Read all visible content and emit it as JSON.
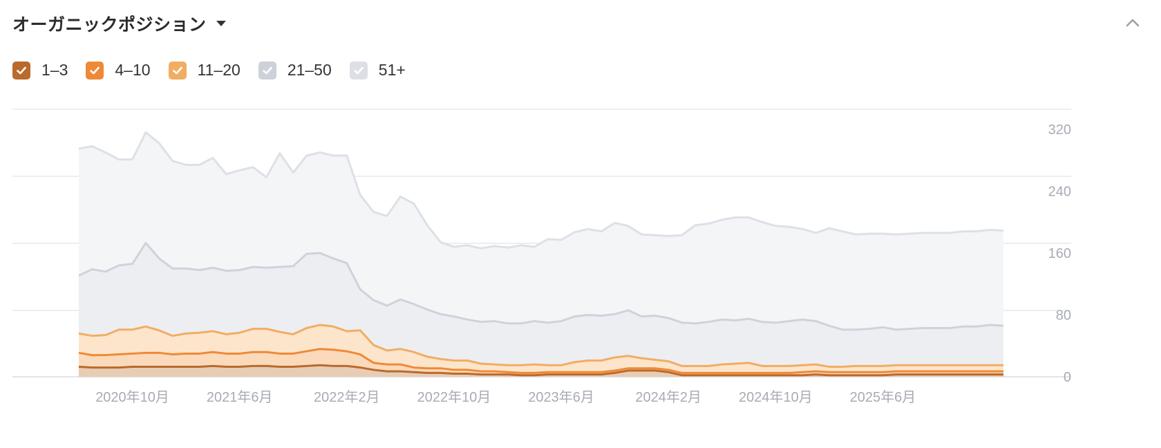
{
  "header": {
    "title": "オーガニックポジション"
  },
  "icons": {
    "dropdown": "caret-down-icon",
    "collapse": "chevron-up-icon",
    "check": "check-icon"
  },
  "legend": [
    {
      "label": "1–3",
      "color": "#b96a2c",
      "checked": true
    },
    {
      "label": "4–10",
      "color": "#ee8a36",
      "checked": true
    },
    {
      "label": "11–20",
      "color": "#f1ad63",
      "checked": true
    },
    {
      "label": "21–50",
      "color": "#cdd1d8",
      "checked": true
    },
    {
      "label": "51+",
      "color": "#dcdfe5",
      "checked": true
    }
  ],
  "chart_data": {
    "type": "area",
    "stacked": true,
    "x_tick_labels": [
      "2020年10月",
      "2021年6月",
      "2022年2月",
      "2022年10月",
      "2023年6月",
      "2024年2月",
      "2024年10月",
      "2025年6月"
    ],
    "x_tick_index": [
      4,
      12,
      20,
      28,
      36,
      44,
      52,
      60
    ],
    "y_ticks": [
      0,
      80,
      160,
      240,
      320
    ],
    "ylim": [
      0,
      320
    ],
    "grid": true,
    "series": [
      {
        "name": "1–3",
        "color": "#b96a2c",
        "values": [
          13,
          12,
          12,
          12,
          13,
          13,
          13,
          13,
          13,
          13,
          14,
          13,
          13,
          14,
          14,
          13,
          13,
          14,
          15,
          14,
          14,
          12,
          9,
          7,
          7,
          6,
          5,
          5,
          4,
          4,
          3,
          3,
          3,
          2,
          2,
          3,
          3,
          3,
          3,
          3,
          5,
          8,
          8,
          8,
          6,
          2,
          2,
          2,
          2,
          2,
          2,
          2,
          2,
          2,
          2,
          3,
          2,
          2,
          2,
          2,
          2,
          3,
          3,
          3,
          3,
          3,
          3,
          3,
          3,
          3
        ]
      },
      {
        "name": "4–10",
        "color": "#ee8a36",
        "values": [
          18,
          16,
          16,
          17,
          17,
          18,
          18,
          16,
          17,
          17,
          18,
          17,
          17,
          18,
          18,
          17,
          17,
          19,
          21,
          21,
          19,
          17,
          9,
          9,
          9,
          6,
          6,
          6,
          5,
          5,
          4,
          4,
          3,
          3,
          3,
          3,
          3,
          3,
          3,
          3,
          3,
          3,
          3,
          3,
          3,
          3,
          3,
          3,
          3,
          3,
          3,
          3,
          3,
          3,
          4,
          4,
          4,
          4,
          4,
          4,
          4,
          4,
          4,
          4,
          4,
          4,
          4,
          4,
          4,
          4
        ]
      },
      {
        "name": "11–20",
        "color": "#f1ad63",
        "values": [
          25,
          25,
          26,
          32,
          31,
          34,
          29,
          24,
          26,
          27,
          27,
          25,
          27,
          30,
          30,
          28,
          25,
          30,
          31,
          30,
          26,
          31,
          23,
          18,
          20,
          20,
          15,
          12,
          12,
          12,
          10,
          9,
          9,
          10,
          11,
          9,
          9,
          13,
          15,
          15,
          17,
          16,
          13,
          11,
          11,
          9,
          9,
          9,
          11,
          12,
          13,
          9,
          9,
          9,
          9,
          9,
          7,
          7,
          8,
          8,
          8,
          8,
          8,
          8,
          8,
          8,
          8,
          8,
          8,
          8
        ]
      },
      {
        "name": "21–50",
        "color": "#cdd1d8",
        "values": [
          75,
          86,
          82,
          83,
          85,
          108,
          93,
          87,
          84,
          81,
          82,
          82,
          81,
          80,
          79,
          84,
          88,
          96,
          93,
          88,
          88,
          53,
          58,
          58,
          64,
          62,
          61,
          58,
          57,
          53,
          54,
          56,
          54,
          54,
          56,
          55,
          57,
          59,
          59,
          58,
          56,
          59,
          54,
          57,
          56,
          56,
          55,
          57,
          58,
          56,
          57,
          57,
          56,
          58,
          59,
          56,
          53,
          48,
          47,
          48,
          50,
          46,
          47,
          48,
          48,
          48,
          50,
          50,
          52,
          51
        ]
      },
      {
        "name": "51+",
        "color": "#dcdfe5",
        "values": [
          164,
          159,
          154,
          137,
          135,
          143,
          149,
          139,
          134,
          136,
          142,
          125,
          129,
          129,
          117,
          147,
          121,
          127,
          130,
          133,
          139,
          122,
          114,
          116,
          133,
          130,
          109,
          93,
          90,
          96,
          95,
          97,
          98,
          101,
          96,
          108,
          105,
          109,
          111,
          109,
          118,
          109,
          106,
          104,
          106,
          113,
          127,
          127,
          129,
          133,
          131,
          129,
          125,
          122,
          117,
          114,
          126,
          127,
          123,
          123,
          121,
          123,
          123,
          123,
          123,
          123,
          123,
          123,
          123,
          123
        ]
      }
    ]
  }
}
